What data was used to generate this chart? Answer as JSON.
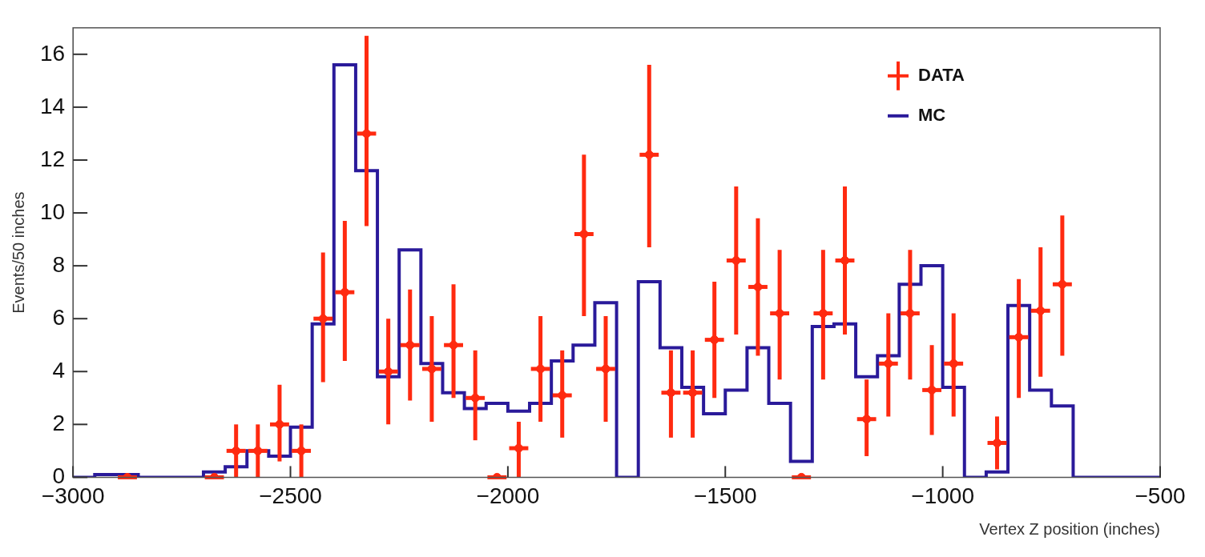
{
  "chart_data": {
    "type": "histogram",
    "xlabel": "Vertex Z position (inches)",
    "ylabel": "Events/50 inches",
    "bins": [
      -3000,
      -2950,
      -2900,
      -2850,
      -2800,
      -2750,
      -2700,
      -2650,
      -2600,
      -2550,
      -2500,
      -2450,
      -2400,
      -2350,
      -2300,
      -2250,
      -2200,
      -2150,
      -2100,
      -2050,
      -2000,
      -1950,
      -1900,
      -1850,
      -1800,
      -1750,
      -1700,
      -1650,
      -1600,
      -1550,
      -1500,
      -1450,
      -1400,
      -1350,
      -1300,
      -1250,
      -1200,
      -1150,
      -1100,
      -1050,
      -1000,
      -950,
      -900,
      -850,
      -800,
      -750,
      -700,
      -650,
      -600,
      -550,
      -500
    ],
    "xlim": [
      -3000,
      -500
    ],
    "xticks": [
      -3000,
      -2500,
      -2000,
      -1500,
      -1000,
      -500
    ],
    "ylim": [
      0,
      17
    ],
    "yticks": [
      0,
      2,
      4,
      6,
      8,
      10,
      12,
      14,
      16
    ],
    "legend": "top right",
    "series": [
      {
        "name": "DATA",
        "type": "scatter",
        "color": "#ff2a10",
        "x": [
          -2875,
          -2675,
          -2625,
          -2575,
          -2525,
          -2475,
          -2425,
          -2375,
          -2325,
          -2275,
          -2225,
          -2175,
          -2125,
          -2075,
          -2025,
          -1975,
          -1925,
          -1875,
          -1825,
          -1775,
          -1675,
          -1625,
          -1575,
          -1525,
          -1475,
          -1425,
          -1375,
          -1325,
          -1275,
          -1225,
          -1175,
          -1125,
          -1075,
          -1025,
          -975,
          -875,
          -825,
          -775,
          -725
        ],
        "values": [
          0,
          0,
          1.0,
          1.0,
          2.0,
          1.0,
          6.0,
          7.0,
          13.0,
          4.0,
          5.0,
          4.1,
          5.0,
          3.0,
          0,
          1.1,
          4.1,
          3.1,
          9.2,
          4.1,
          12.2,
          3.2,
          3.2,
          5.2,
          8.2,
          7.2,
          6.2,
          0,
          6.2,
          8.2,
          2.2,
          4.3,
          6.2,
          3.3,
          4.3,
          1.3,
          5.3,
          6.3,
          7.3
        ],
        "errors": [
          null,
          null,
          [
            0,
            2.0
          ],
          [
            0,
            2.0
          ],
          [
            0.6,
            3.5
          ],
          [
            0,
            2.0
          ],
          [
            3.6,
            8.5
          ],
          [
            4.4,
            9.7
          ],
          [
            9.5,
            16.7
          ],
          [
            2.0,
            6.0
          ],
          [
            2.9,
            7.1
          ],
          [
            2.1,
            6.1
          ],
          [
            3.0,
            7.3
          ],
          [
            1.4,
            4.8
          ],
          null,
          [
            0,
            2.1
          ],
          [
            2.1,
            6.1
          ],
          [
            1.5,
            4.8
          ],
          [
            6.1,
            12.2
          ],
          [
            2.1,
            6.1
          ],
          [
            8.7,
            15.6
          ],
          [
            1.5,
            4.8
          ],
          [
            1.5,
            4.8
          ],
          [
            3.0,
            7.4
          ],
          [
            5.4,
            11.0
          ],
          [
            4.6,
            9.8
          ],
          [
            3.7,
            8.6
          ],
          null,
          [
            3.7,
            8.6
          ],
          [
            5.4,
            11.0
          ],
          [
            0.8,
            3.7
          ],
          [
            2.3,
            6.2
          ],
          [
            3.7,
            8.6
          ],
          [
            1.6,
            5.0
          ],
          [
            2.3,
            6.2
          ],
          [
            0.3,
            2.3
          ],
          [
            3.0,
            7.5
          ],
          [
            3.8,
            8.7
          ],
          [
            4.6,
            9.9
          ]
        ],
        "xerrors": [
          22,
          22,
          22,
          22,
          22,
          22,
          22,
          22,
          22,
          22,
          22,
          22,
          22,
          22,
          22,
          22,
          22,
          22,
          22,
          22,
          22,
          22,
          22,
          22,
          22,
          22,
          22,
          22,
          22,
          22,
          22,
          22,
          22,
          22,
          22,
          22,
          22,
          22,
          22
        ]
      },
      {
        "name": "MC",
        "type": "histogram",
        "color": "#2a1a9a",
        "values": [
          0,
          0.1,
          0.1,
          0,
          0,
          0,
          0.2,
          0.4,
          1.0,
          0.8,
          1.9,
          5.8,
          15.6,
          11.6,
          3.8,
          8.6,
          4.3,
          3.2,
          2.6,
          2.8,
          2.5,
          2.8,
          4.4,
          5.0,
          6.6,
          0,
          7.4,
          4.9,
          3.4,
          2.4,
          3.3,
          4.9,
          2.8,
          0.6,
          5.7,
          5.8,
          3.8,
          4.6,
          7.3,
          8.0,
          3.4,
          0,
          0.2,
          6.5,
          3.3,
          2.7,
          0,
          0,
          0,
          0
        ]
      }
    ]
  }
}
